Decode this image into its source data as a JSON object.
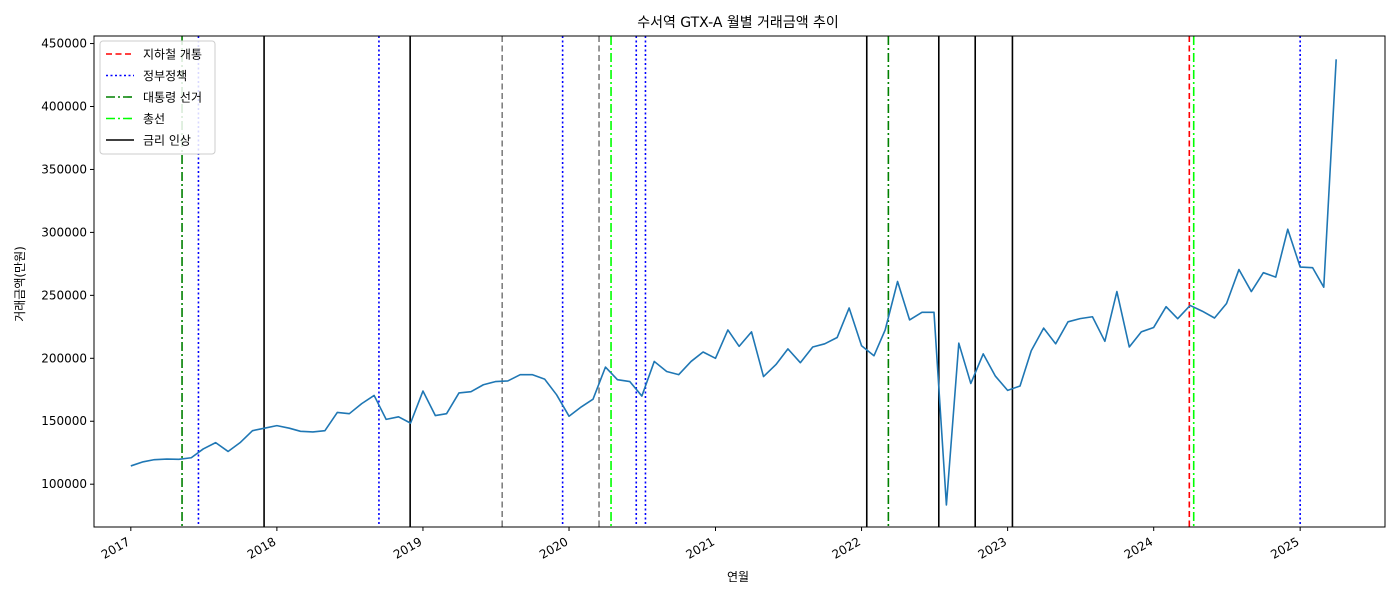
{
  "chart_data": {
    "type": "line",
    "title": "수서역 GTX-A 월별 거래금액 추이",
    "xlabel": "연월",
    "ylabel": "거래금액(만원)",
    "xlim": [
      "2016-10-01",
      "2025-08-01"
    ],
    "ylim": [
      66000,
      456000
    ],
    "y_ticks": [
      100000,
      150000,
      200000,
      250000,
      300000,
      350000,
      400000,
      450000
    ],
    "x_ticks": [
      "2017",
      "2018",
      "2019",
      "2020",
      "2021",
      "2022",
      "2023",
      "2024",
      "2025"
    ],
    "grid": false,
    "legend_position": "top-left",
    "series": [
      {
        "color": "#1f77b4",
        "points": [
          [
            "2017-01",
            114500
          ],
          [
            "2017-02",
            117800
          ],
          [
            "2017-03",
            119500
          ],
          [
            "2017-04",
            120000
          ],
          [
            "2017-05",
            119800
          ],
          [
            "2017-06",
            121000
          ],
          [
            "2017-07",
            128000
          ],
          [
            "2017-08",
            133000
          ],
          [
            "2017-09",
            126000
          ],
          [
            "2017-10",
            133000
          ],
          [
            "2017-11",
            142500
          ],
          [
            "2017-12",
            144500
          ],
          [
            "2018-01",
            146500
          ],
          [
            "2018-02",
            144500
          ],
          [
            "2018-03",
            142000
          ],
          [
            "2018-04",
            141500
          ],
          [
            "2018-05",
            142500
          ],
          [
            "2018-06",
            157000
          ],
          [
            "2018-07",
            156000
          ],
          [
            "2018-08",
            164000
          ],
          [
            "2018-09",
            170500
          ],
          [
            "2018-10",
            151500
          ],
          [
            "2018-11",
            153500
          ],
          [
            "2018-12",
            148500
          ],
          [
            "2019-01",
            174000
          ],
          [
            "2019-02",
            154500
          ],
          [
            "2019-03",
            156000
          ],
          [
            "2019-04",
            172500
          ],
          [
            "2019-05",
            173500
          ],
          [
            "2019-06",
            179000
          ],
          [
            "2019-07",
            181500
          ],
          [
            "2019-08",
            182000
          ],
          [
            "2019-09",
            187000
          ],
          [
            "2019-10",
            187000
          ],
          [
            "2019-11",
            183500
          ],
          [
            "2019-12",
            171000
          ],
          [
            "2020-01",
            154000
          ],
          [
            "2020-02",
            161500
          ],
          [
            "2020-03",
            167500
          ],
          [
            "2020-04",
            193000
          ],
          [
            "2020-05",
            183000
          ],
          [
            "2020-06",
            181500
          ],
          [
            "2020-07",
            170000
          ],
          [
            "2020-08",
            197500
          ],
          [
            "2020-09",
            189500
          ],
          [
            "2020-10",
            187000
          ],
          [
            "2020-11",
            197500
          ],
          [
            "2020-12",
            205000
          ],
          [
            "2021-01",
            200000
          ],
          [
            "2021-02",
            222500
          ],
          [
            "2021-03",
            209500
          ],
          [
            "2021-04",
            221000
          ],
          [
            "2021-05",
            185500
          ],
          [
            "2021-06",
            195000
          ],
          [
            "2021-07",
            207500
          ],
          [
            "2021-08",
            196500
          ],
          [
            "2021-09",
            209000
          ],
          [
            "2021-10",
            211500
          ],
          [
            "2021-11",
            216500
          ],
          [
            "2021-12",
            240000
          ],
          [
            "2022-01",
            210000
          ],
          [
            "2022-02",
            202000
          ],
          [
            "2022-03",
            222500
          ],
          [
            "2022-04",
            261000
          ],
          [
            "2022-05",
            230500
          ],
          [
            "2022-06",
            236500
          ],
          [
            "2022-07",
            236500
          ],
          [
            "2022-08",
            83500
          ],
          [
            "2022-09",
            212000
          ],
          [
            "2022-10",
            180000
          ],
          [
            "2022-11",
            203500
          ],
          [
            "2022-12",
            186000
          ],
          [
            "2023-01",
            174500
          ],
          [
            "2023-02",
            178000
          ],
          [
            "2023-03",
            206000
          ],
          [
            "2023-04",
            224000
          ],
          [
            "2023-05",
            211500
          ],
          [
            "2023-06",
            229000
          ],
          [
            "2023-07",
            231500
          ],
          [
            "2023-08",
            233000
          ],
          [
            "2023-09",
            213500
          ],
          [
            "2023-10",
            253000
          ],
          [
            "2023-11",
            209000
          ],
          [
            "2023-12",
            221000
          ],
          [
            "2024-01",
            224500
          ],
          [
            "2024-02",
            241000
          ],
          [
            "2024-03",
            231500
          ],
          [
            "2024-04",
            242000
          ],
          [
            "2024-05",
            237500
          ],
          [
            "2024-06",
            232000
          ],
          [
            "2024-07",
            243500
          ],
          [
            "2024-08",
            270500
          ],
          [
            "2024-09",
            253000
          ],
          [
            "2024-10",
            268000
          ],
          [
            "2024-11",
            264500
          ],
          [
            "2024-12",
            302500
          ],
          [
            "2025-01",
            272500
          ],
          [
            "2025-02",
            272000
          ],
          [
            "2025-03",
            256500
          ],
          [
            "2025-04",
            437500
          ]
        ]
      }
    ],
    "event_lines": [
      {
        "date": "2017-05-09",
        "type": "election"
      },
      {
        "date": "2017-06-19",
        "type": "policy"
      },
      {
        "date": "2017-11-30",
        "type": "rate"
      },
      {
        "date": "2018-09-13",
        "type": "policy"
      },
      {
        "date": "2018-11-30",
        "type": "rate"
      },
      {
        "date": "2019-07-18",
        "type": "other"
      },
      {
        "date": "2019-12-16",
        "type": "policy"
      },
      {
        "date": "2020-03-16",
        "type": "other"
      },
      {
        "date": "2020-04-15",
        "type": "general_election"
      },
      {
        "date": "2020-06-17",
        "type": "policy"
      },
      {
        "date": "2020-07-10",
        "type": "policy"
      },
      {
        "date": "2022-01-14",
        "type": "rate"
      },
      {
        "date": "2022-03-09",
        "type": "election"
      },
      {
        "date": "2022-07-13",
        "type": "rate"
      },
      {
        "date": "2022-10-12",
        "type": "rate"
      },
      {
        "date": "2023-01-13",
        "type": "rate"
      },
      {
        "date": "2024-03-30",
        "type": "subway"
      },
      {
        "date": "2024-04-10",
        "type": "general_election"
      },
      {
        "date": "2025-01-01",
        "type": "policy"
      }
    ],
    "legend": [
      {
        "type": "subway",
        "label": "지하철 개통",
        "color": "#ff0000",
        "dash": "dashed"
      },
      {
        "type": "policy",
        "label": "정부정책",
        "color": "#0000ff",
        "dash": "dotted"
      },
      {
        "type": "election",
        "label": "대통령 선거",
        "color": "#008000",
        "dash": "dashdot"
      },
      {
        "type": "general_election",
        "label": "총선",
        "color": "#00ff00",
        "dash": "dashdot"
      },
      {
        "type": "rate",
        "label": "금리 인상",
        "color": "#000000",
        "dash": "solid"
      }
    ],
    "other_line_color": "#808080"
  }
}
